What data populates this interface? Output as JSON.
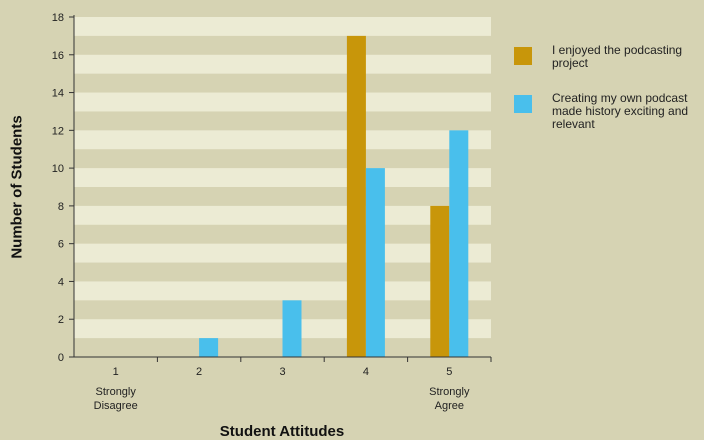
{
  "chart_data": {
    "type": "bar",
    "categories": [
      "1",
      "2",
      "3",
      "4",
      "5"
    ],
    "category_sublabels": [
      "Strongly Disagree",
      "",
      "",
      "",
      "Strongly Agree"
    ],
    "series": [
      {
        "name": "I enjoyed the podcasting project",
        "values": [
          0,
          0,
          0,
          17,
          8
        ],
        "color": "#c8960a"
      },
      {
        "name": "Creating my own podcast made history exciting and relevant",
        "values": [
          0,
          1,
          3,
          10,
          12
        ],
        "color": "#49bfec"
      }
    ],
    "xlabel": "Student Attitudes",
    "ylabel": "Number of Students",
    "ylim": [
      0,
      18
    ],
    "yticks": [
      0,
      2,
      4,
      6,
      8,
      10,
      12,
      14,
      16,
      18
    ],
    "legend_position": "right",
    "colors": {
      "background": "#d6d3b3",
      "band_light": "#ecebd4",
      "axis": "#333333"
    }
  }
}
